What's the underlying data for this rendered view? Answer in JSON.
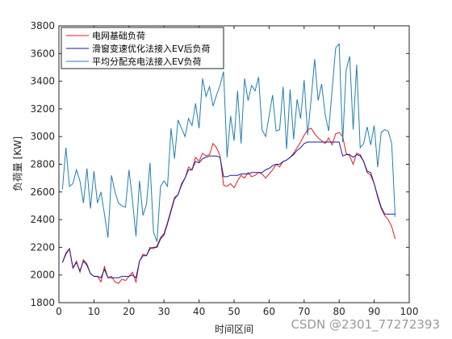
{
  "chart_data": {
    "type": "line",
    "xlabel": "时间区间",
    "ylabel": "负荷量 [KW]",
    "watermark": "CSDN @2301_77272393",
    "x": [
      1,
      2,
      3,
      4,
      5,
      6,
      7,
      8,
      9,
      10,
      11,
      12,
      13,
      14,
      15,
      16,
      17,
      18,
      19,
      20,
      21,
      22,
      23,
      24,
      25,
      26,
      27,
      28,
      29,
      30,
      31,
      32,
      33,
      34,
      35,
      36,
      37,
      38,
      39,
      40,
      41,
      42,
      43,
      44,
      45,
      46,
      47,
      48,
      49,
      50,
      51,
      52,
      53,
      54,
      55,
      56,
      57,
      58,
      59,
      60,
      61,
      62,
      63,
      64,
      65,
      66,
      67,
      68,
      69,
      70,
      71,
      72,
      73,
      74,
      75,
      76,
      77,
      78,
      79,
      80,
      81,
      82,
      83,
      84,
      85,
      86,
      87,
      88,
      89,
      90,
      91,
      92,
      93,
      94,
      95,
      96
    ],
    "series": [
      {
        "name": "电网基础负荷",
        "color": "#e8191b",
        "values": [
          2090,
          2160,
          2190,
          2050,
          2100,
          2020,
          2110,
          2080,
          2010,
          1990,
          1990,
          1950,
          2060,
          1980,
          1990,
          1950,
          1940,
          1970,
          1960,
          1990,
          2020,
          1950,
          2100,
          2150,
          2140,
          2200,
          2190,
          2210,
          2270,
          2300,
          2380,
          2470,
          2560,
          2580,
          2660,
          2700,
          2780,
          2760,
          2850,
          2820,
          2880,
          2860,
          2870,
          2950,
          2920,
          2860,
          2650,
          2640,
          2660,
          2630,
          2680,
          2720,
          2700,
          2740,
          2710,
          2720,
          2740,
          2730,
          2700,
          2730,
          2760,
          2800,
          2780,
          2820,
          2830,
          2850,
          2880,
          2920,
          2960,
          3010,
          3050,
          3060,
          3020,
          2990,
          2970,
          2950,
          2990,
          2940,
          3020,
          3030,
          3000,
          2880,
          2860,
          2800,
          2880,
          2870,
          2820,
          2740,
          2720,
          2660,
          2560,
          2480,
          2430,
          2400,
          2350,
          2260
        ]
      },
      {
        "name": "滑窗变速优化法接入EV后负荷",
        "color": "#1a1a9e",
        "values": [
          2090,
          2150,
          2190,
          2050,
          2090,
          2030,
          2100,
          2070,
          2010,
          1990,
          1990,
          1980,
          2040,
          1980,
          1980,
          1980,
          1980,
          1990,
          1990,
          1990,
          2000,
          1980,
          2100,
          2140,
          2140,
          2190,
          2200,
          2200,
          2260,
          2290,
          2370,
          2460,
          2550,
          2580,
          2650,
          2700,
          2760,
          2760,
          2820,
          2810,
          2840,
          2850,
          2860,
          2860,
          2860,
          2850,
          2710,
          2710,
          2720,
          2720,
          2720,
          2730,
          2730,
          2730,
          2740,
          2740,
          2740,
          2740,
          2760,
          2770,
          2790,
          2800,
          2800,
          2820,
          2830,
          2850,
          2870,
          2900,
          2920,
          2950,
          2960,
          2960,
          2960,
          2960,
          2960,
          2960,
          2960,
          2960,
          2960,
          2960,
          2860,
          2870,
          2870,
          2850,
          2870,
          2860,
          2820,
          2750,
          2740,
          2660,
          2570,
          2490,
          2440,
          2440,
          2440,
          2440
        ]
      },
      {
        "name": "平均分配充电法接入EV负荷",
        "color": "#1f7fb4",
        "values": [
          2620,
          2920,
          2640,
          2660,
          2760,
          2680,
          2520,
          2770,
          2480,
          2750,
          2520,
          2600,
          2440,
          2270,
          2720,
          2600,
          2520,
          2500,
          2490,
          2760,
          2540,
          2280,
          2680,
          2430,
          2510,
          2810,
          2310,
          2240,
          2640,
          2680,
          2640,
          3060,
          2840,
          3120,
          3060,
          3000,
          3130,
          3080,
          3240,
          3060,
          3420,
          3290,
          3360,
          3220,
          3300,
          3370,
          3470,
          2850,
          3150,
          2970,
          3330,
          2950,
          3420,
          3260,
          3370,
          3330,
          3430,
          3050,
          3000,
          3150,
          3300,
          3040,
          3050,
          3360,
          2910,
          3340,
          2980,
          3270,
          3130,
          3410,
          3010,
          3270,
          3560,
          3260,
          3380,
          3160,
          3040,
          3340,
          3640,
          3670,
          2960,
          3480,
          3580,
          3050,
          3520,
          2920,
          2950,
          3070,
          2940,
          3080,
          2780,
          3030,
          3050,
          3040,
          2950,
          2420
        ]
      }
    ],
    "xlim": [
      0,
      100
    ],
    "xticks": [
      0,
      10,
      20,
      30,
      40,
      50,
      60,
      70,
      80,
      90,
      100
    ],
    "ylim": [
      1800,
      3800
    ],
    "yticks": [
      1800,
      2000,
      2200,
      2400,
      2600,
      2800,
      3000,
      3200,
      3400,
      3600,
      3800
    ],
    "grid": false,
    "legend": "top-left"
  }
}
